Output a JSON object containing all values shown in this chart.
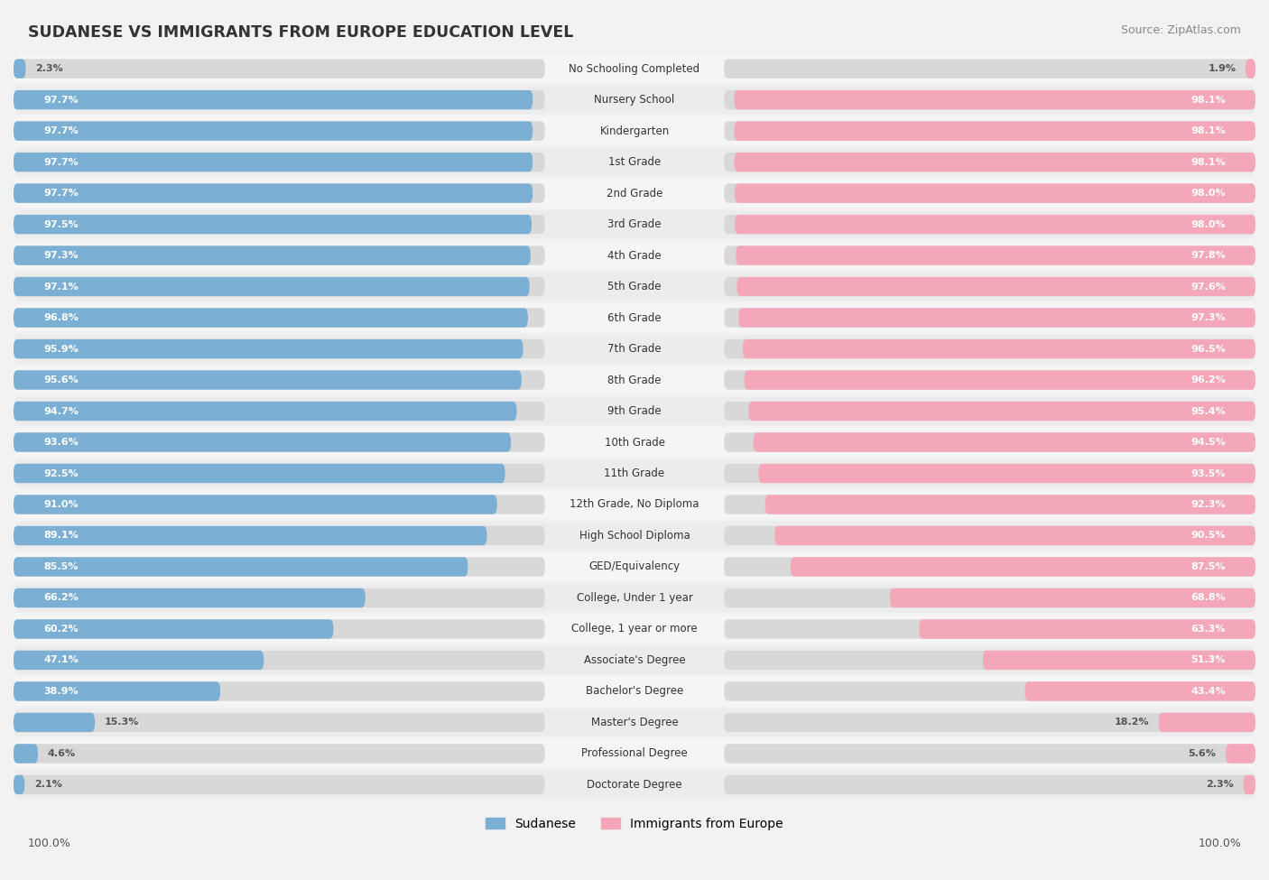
{
  "title": "SUDANESE VS IMMIGRANTS FROM EUROPE EDUCATION LEVEL",
  "source": "Source: ZipAtlas.com",
  "categories": [
    "No Schooling Completed",
    "Nursery School",
    "Kindergarten",
    "1st Grade",
    "2nd Grade",
    "3rd Grade",
    "4th Grade",
    "5th Grade",
    "6th Grade",
    "7th Grade",
    "8th Grade",
    "9th Grade",
    "10th Grade",
    "11th Grade",
    "12th Grade, No Diploma",
    "High School Diploma",
    "GED/Equivalency",
    "College, Under 1 year",
    "College, 1 year or more",
    "Associate's Degree",
    "Bachelor's Degree",
    "Master's Degree",
    "Professional Degree",
    "Doctorate Degree"
  ],
  "sudanese": [
    2.3,
    97.7,
    97.7,
    97.7,
    97.7,
    97.5,
    97.3,
    97.1,
    96.8,
    95.9,
    95.6,
    94.7,
    93.6,
    92.5,
    91.0,
    89.1,
    85.5,
    66.2,
    60.2,
    47.1,
    38.9,
    15.3,
    4.6,
    2.1
  ],
  "europe": [
    1.9,
    98.1,
    98.1,
    98.1,
    98.0,
    98.0,
    97.8,
    97.6,
    97.3,
    96.5,
    96.2,
    95.4,
    94.5,
    93.5,
    92.3,
    90.5,
    87.5,
    68.8,
    63.3,
    51.3,
    43.4,
    18.2,
    5.6,
    2.3
  ],
  "sudanese_color": "#7bafd4",
  "europe_color": "#f4a7b9",
  "row_bg_odd": "#f0f0f0",
  "row_bg_even": "#e8e8e8",
  "bar_bg_color": "#e0e0e0",
  "center_label_color": "#444444",
  "value_label_color_inside": "#ffffff",
  "value_label_color_outside": "#666666"
}
